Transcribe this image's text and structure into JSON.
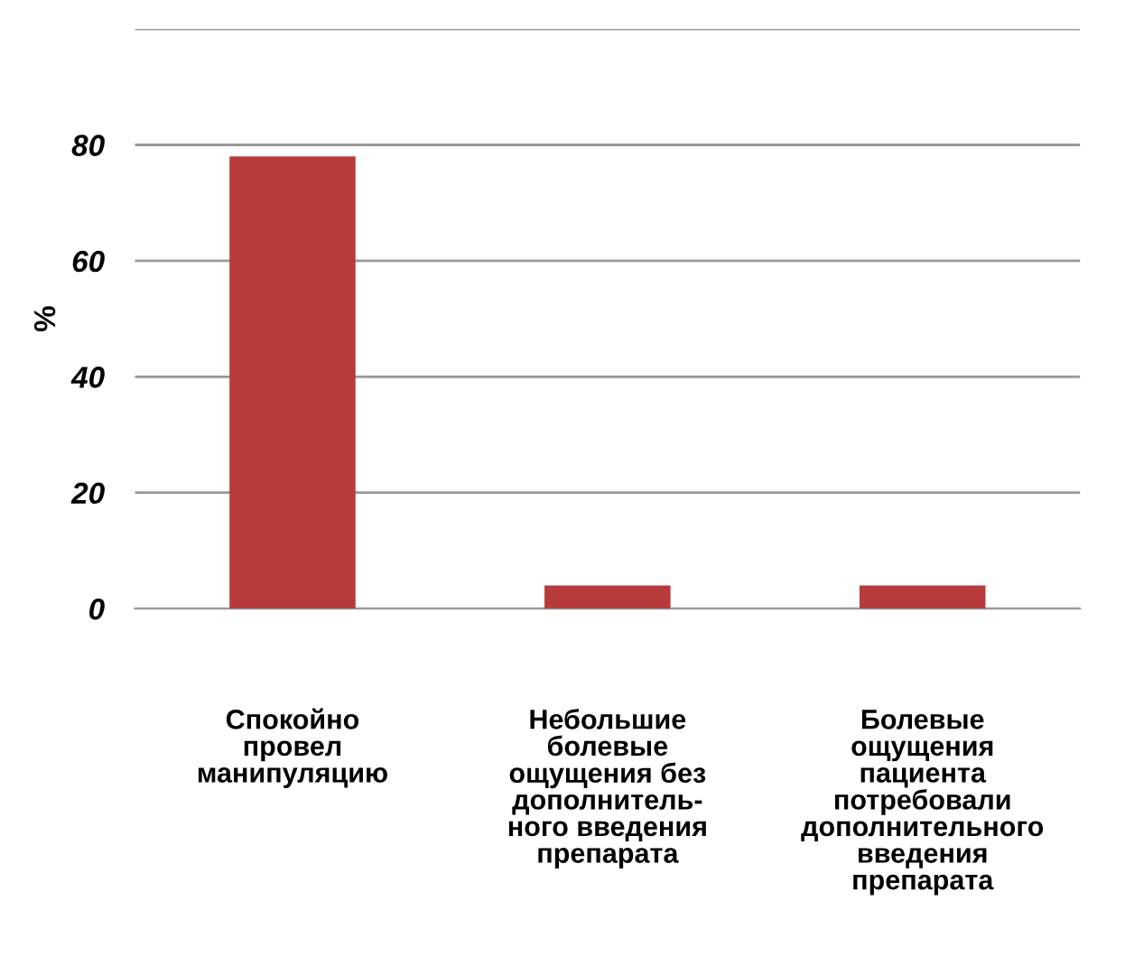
{
  "chart_data": {
    "type": "bar",
    "ylabel": "%",
    "categories": [
      "Спокойно\nпровел\nманипуляцию",
      "Небольшие\nболевые\nощущения без\nдополнитель-\nного введения\nпрепарата",
      "Болевые\nощущения\nпациента\nпотребовали\nдополнительного\nвведения\nпрепарата"
    ],
    "values": [
      78,
      4,
      4
    ],
    "color": "#b83b3b",
    "ylim": [
      0,
      100
    ],
    "yticks": [
      0,
      20,
      40,
      60,
      80,
      {
        "value": 100,
        "label": null
      }
    ],
    "grid": "y"
  }
}
